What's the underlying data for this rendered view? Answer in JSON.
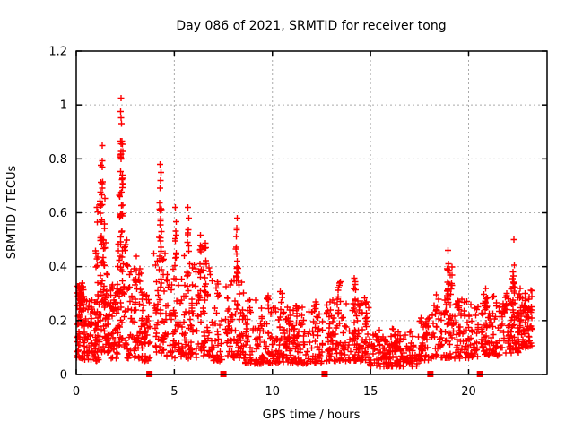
{
  "window": {
    "title": "Day 086 of 2021, SRMTID for receiver tong"
  },
  "chart_data": {
    "type": "scatter",
    "title": "Day 086 of 2021, SRMTID for receiver tong",
    "xlabel": "GPS time / hours",
    "ylabel": "SRMTID / TECUs",
    "xlim": [
      0,
      24
    ],
    "ylim": [
      0,
      1.2
    ],
    "xticks": {
      "values": [
        0,
        5,
        10,
        15,
        20
      ],
      "labels": [
        "0",
        "5",
        "10",
        "15",
        "20"
      ]
    },
    "yticks": {
      "values": [
        0,
        0.2,
        0.4,
        0.6,
        0.8,
        1.0,
        1.2
      ],
      "labels": [
        "0",
        "0.2",
        "0.4",
        "0.6",
        "0.8",
        "1",
        "1.2"
      ]
    },
    "grid": true,
    "grid_color": "#aaaaaa",
    "marker": "plus",
    "marker_color": "#ff0000",
    "background": "#ffffff",
    "border_color": "#000000",
    "seed": 7,
    "gap_marker_x": [
      3.73,
      7.5,
      12.66,
      18.05,
      20.58
    ],
    "gap_marker_y": 0,
    "notable_points": [
      [
        2.28,
        1.025
      ],
      [
        2.26,
        0.975
      ],
      [
        2.3,
        0.93
      ],
      [
        1.32,
        0.85
      ],
      [
        4.28,
        0.78
      ],
      [
        4.33,
        0.75
      ],
      [
        5.06,
        0.62
      ],
      [
        5.7,
        0.62
      ],
      [
        8.2,
        0.58
      ],
      [
        18.95,
        0.46
      ],
      [
        22.3,
        0.5
      ],
      [
        1.05,
        0.62
      ]
    ],
    "baseline_segments": [
      {
        "x0": 0.02,
        "x1": 0.35,
        "n": 55,
        "ylo": 0.06,
        "yhi": 0.33,
        "skew": 1.2
      },
      {
        "x0": 0.1,
        "x1": 0.4,
        "n": 18,
        "ylo": 0.24,
        "yhi": 0.34,
        "skew": 1.0
      },
      {
        "x0": 0.35,
        "x1": 1.15,
        "n": 85,
        "ylo": 0.05,
        "yhi": 0.28,
        "skew": 1.5
      },
      {
        "x0": 1.1,
        "x1": 1.65,
        "n": 65,
        "ylo": 0.08,
        "yhi": 0.45,
        "skew": 1.6
      },
      {
        "x0": 1.6,
        "x1": 2.1,
        "n": 55,
        "ylo": 0.06,
        "yhi": 0.35,
        "skew": 1.5
      },
      {
        "x0": 2.1,
        "x1": 2.6,
        "n": 50,
        "ylo": 0.1,
        "yhi": 0.5,
        "skew": 1.4
      },
      {
        "x0": 2.6,
        "x1": 3.35,
        "n": 70,
        "ylo": 0.06,
        "yhi": 0.42,
        "skew": 1.7
      },
      {
        "x0": 3.3,
        "x1": 3.78,
        "n": 42,
        "ylo": 0.05,
        "yhi": 0.3,
        "skew": 1.6
      },
      {
        "x0": 3.95,
        "x1": 4.6,
        "n": 55,
        "ylo": 0.08,
        "yhi": 0.5,
        "skew": 1.6
      },
      {
        "x0": 4.6,
        "x1": 5.4,
        "n": 55,
        "ylo": 0.06,
        "yhi": 0.4,
        "skew": 1.6
      },
      {
        "x0": 5.4,
        "x1": 6.1,
        "n": 55,
        "ylo": 0.06,
        "yhi": 0.45,
        "skew": 1.6
      },
      {
        "x0": 6.1,
        "x1": 6.9,
        "n": 60,
        "ylo": 0.06,
        "yhi": 0.42,
        "skew": 1.5
      },
      {
        "x0": 6.9,
        "x1": 7.45,
        "n": 40,
        "ylo": 0.05,
        "yhi": 0.35,
        "skew": 1.6
      },
      {
        "x0": 7.6,
        "x1": 8.05,
        "n": 35,
        "ylo": 0.05,
        "yhi": 0.35,
        "skew": 1.5
      },
      {
        "x0": 8.0,
        "x1": 8.6,
        "n": 45,
        "ylo": 0.06,
        "yhi": 0.35,
        "skew": 1.4
      },
      {
        "x0": 8.6,
        "x1": 10.0,
        "n": 95,
        "ylo": 0.04,
        "yhi": 0.28,
        "skew": 1.7
      },
      {
        "x0": 10.0,
        "x1": 12.6,
        "n": 175,
        "ylo": 0.04,
        "yhi": 0.25,
        "skew": 1.7
      },
      {
        "x0": 12.75,
        "x1": 14.9,
        "n": 155,
        "ylo": 0.05,
        "yhi": 0.28,
        "skew": 1.6
      },
      {
        "x0": 14.9,
        "x1": 17.4,
        "n": 165,
        "ylo": 0.03,
        "yhi": 0.17,
        "skew": 1.6
      },
      {
        "x0": 17.4,
        "x1": 18.0,
        "n": 45,
        "ylo": 0.05,
        "yhi": 0.22,
        "skew": 1.5
      },
      {
        "x0": 18.1,
        "x1": 19.4,
        "n": 90,
        "ylo": 0.06,
        "yhi": 0.3,
        "skew": 1.5
      },
      {
        "x0": 19.4,
        "x1": 20.5,
        "n": 80,
        "ylo": 0.06,
        "yhi": 0.28,
        "skew": 1.6
      },
      {
        "x0": 20.65,
        "x1": 21.6,
        "n": 80,
        "ylo": 0.07,
        "yhi": 0.3,
        "skew": 1.5
      },
      {
        "x0": 21.6,
        "x1": 22.6,
        "n": 90,
        "ylo": 0.08,
        "yhi": 0.32,
        "skew": 1.4
      },
      {
        "x0": 22.6,
        "x1": 23.25,
        "n": 70,
        "ylo": 0.1,
        "yhi": 0.33,
        "skew": 1.2
      }
    ],
    "spike_columns": [
      {
        "x": 0.2,
        "n": 8,
        "ylo": 0.26,
        "yhi": 0.33
      },
      {
        "x": 1.05,
        "n": 8,
        "ylo": 0.3,
        "yhi": 0.62
      },
      {
        "x": 1.28,
        "n": 22,
        "ylo": 0.45,
        "yhi": 0.83
      },
      {
        "x": 1.45,
        "n": 10,
        "ylo": 0.4,
        "yhi": 0.72
      },
      {
        "x": 2.25,
        "n": 9,
        "ylo": 0.55,
        "yhi": 1.0
      },
      {
        "x": 2.32,
        "n": 28,
        "ylo": 0.45,
        "yhi": 0.87
      },
      {
        "x": 3.05,
        "n": 8,
        "ylo": 0.3,
        "yhi": 0.46
      },
      {
        "x": 4.28,
        "n": 20,
        "ylo": 0.38,
        "yhi": 0.76
      },
      {
        "x": 5.05,
        "n": 10,
        "ylo": 0.38,
        "yhi": 0.6
      },
      {
        "x": 5.7,
        "n": 10,
        "ylo": 0.35,
        "yhi": 0.6
      },
      {
        "x": 6.35,
        "n": 10,
        "ylo": 0.35,
        "yhi": 0.52
      },
      {
        "x": 6.6,
        "n": 8,
        "ylo": 0.3,
        "yhi": 0.5
      },
      {
        "x": 8.2,
        "n": 16,
        "ylo": 0.35,
        "yhi": 0.57
      },
      {
        "x": 9.75,
        "n": 6,
        "ylo": 0.25,
        "yhi": 0.34
      },
      {
        "x": 10.45,
        "n": 6,
        "ylo": 0.2,
        "yhi": 0.31
      },
      {
        "x": 11.2,
        "n": 6,
        "ylo": 0.2,
        "yhi": 0.3
      },
      {
        "x": 12.2,
        "n": 5,
        "ylo": 0.2,
        "yhi": 0.28
      },
      {
        "x": 13.4,
        "n": 10,
        "ylo": 0.22,
        "yhi": 0.36
      },
      {
        "x": 14.2,
        "n": 8,
        "ylo": 0.22,
        "yhi": 0.37
      },
      {
        "x": 14.75,
        "n": 6,
        "ylo": 0.2,
        "yhi": 0.3
      },
      {
        "x": 18.95,
        "n": 14,
        "ylo": 0.28,
        "yhi": 0.45
      },
      {
        "x": 19.1,
        "n": 8,
        "ylo": 0.25,
        "yhi": 0.4
      },
      {
        "x": 20.9,
        "n": 6,
        "ylo": 0.22,
        "yhi": 0.32
      },
      {
        "x": 22.3,
        "n": 8,
        "ylo": 0.32,
        "yhi": 0.48
      }
    ]
  }
}
